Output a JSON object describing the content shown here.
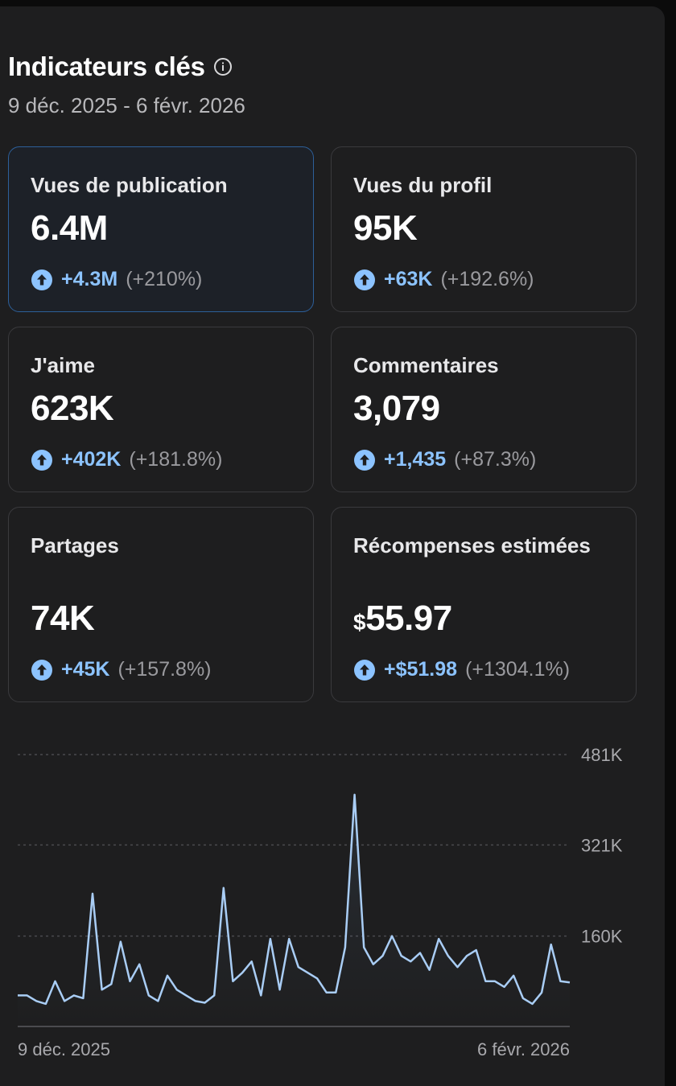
{
  "header": {
    "title": "Indicateurs clés",
    "info_icon": "info-circle-icon",
    "date_range": "9 déc. 2025 - 6 févr. 2026"
  },
  "colors": {
    "background": "#1e1e1f",
    "accent": "#8cc3ff",
    "selected_border": "#2d5f99",
    "muted": "#9a9a9e"
  },
  "metrics": [
    {
      "label": "Vues de publication",
      "value": "6.4M",
      "delta_abs": "+4.3M",
      "delta_pct": "(+210%)",
      "selected": true
    },
    {
      "label": "Vues du profil",
      "value": "95K",
      "delta_abs": "+63K",
      "delta_pct": "(+192.6%)"
    },
    {
      "label": "J'aime",
      "value": "623K",
      "delta_abs": "+402K",
      "delta_pct": "(+181.8%)"
    },
    {
      "label": "Commentaires",
      "value": "3,079",
      "delta_abs": "+1,435",
      "delta_pct": "(+87.3%)"
    },
    {
      "label": "Partages",
      "value": "74K",
      "delta_abs": "+45K",
      "delta_pct": "(+157.8%)"
    },
    {
      "label": "Récompenses estimées",
      "value_currency": "$",
      "value": "55.97",
      "delta_abs": "+$51.98",
      "delta_pct": "(+1304.1%)"
    }
  ],
  "chart_data": {
    "type": "area",
    "y_ticks": [
      {
        "value": 481000,
        "label": "481K"
      },
      {
        "value": 321000,
        "label": "321K"
      },
      {
        "value": 160000,
        "label": "160K"
      }
    ],
    "x_tick_labels": [
      "9 déc. 2025",
      "6 févr. 2026"
    ],
    "ylim": [
      0,
      481000
    ],
    "grid": "horizontal dashed",
    "line_color": "#a9cdf5",
    "values": [
      55000,
      55000,
      45000,
      40000,
      80000,
      45000,
      55000,
      50000,
      235000,
      65000,
      75000,
      150000,
      80000,
      110000,
      55000,
      45000,
      90000,
      65000,
      55000,
      45000,
      42000,
      55000,
      245000,
      80000,
      95000,
      115000,
      55000,
      155000,
      65000,
      155000,
      105000,
      95000,
      85000,
      60000,
      60000,
      140000,
      410000,
      140000,
      110000,
      125000,
      160000,
      125000,
      115000,
      130000,
      100000,
      155000,
      125000,
      105000,
      125000,
      135000,
      80000,
      80000,
      70000,
      90000,
      50000,
      40000,
      60000,
      145000,
      80000,
      78000
    ]
  }
}
